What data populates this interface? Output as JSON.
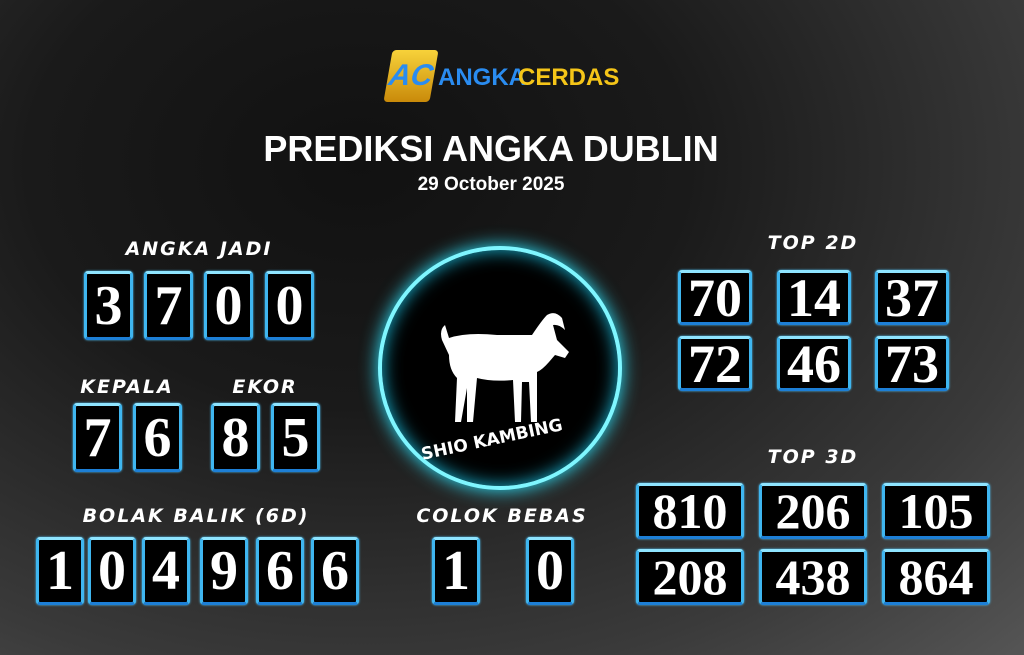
{
  "logo": {
    "text_1": "ANGKA",
    "text_2": "CERDAS",
    "mark": "AC"
  },
  "title": "PREDIKSI ANGKA DUBLIN",
  "date": "29 October 2025",
  "angka_jadi": {
    "label": "ANGKA JADI",
    "digits": [
      "3",
      "7",
      "0",
      "0"
    ]
  },
  "kepala": {
    "label": "KEPALA",
    "digits": [
      "7",
      "6"
    ]
  },
  "ekor": {
    "label": "EKOR",
    "digits": [
      "8",
      "5"
    ]
  },
  "bolak_balik": {
    "label": "BOLAK BALIK (6D)",
    "digits": [
      "1",
      "0",
      "4",
      "9",
      "6",
      "6"
    ]
  },
  "colok_bebas": {
    "label": "COLOK BEBAS",
    "digits": [
      "1",
      "0"
    ]
  },
  "shio": {
    "label": "SHIO KAMBING",
    "icon": "goat-icon"
  },
  "top2d": {
    "label": "TOP 2D",
    "values": [
      "70",
      "14",
      "37",
      "72",
      "46",
      "73"
    ]
  },
  "top3d": {
    "label": "TOP 3D",
    "values": [
      "810",
      "206",
      "105",
      "208",
      "438",
      "864"
    ]
  },
  "colors": {
    "accent": "#3fb6f0",
    "logo_blue": "#2a8cf0",
    "logo_yellow": "#f5c518",
    "ring": "#5ff0ff"
  }
}
